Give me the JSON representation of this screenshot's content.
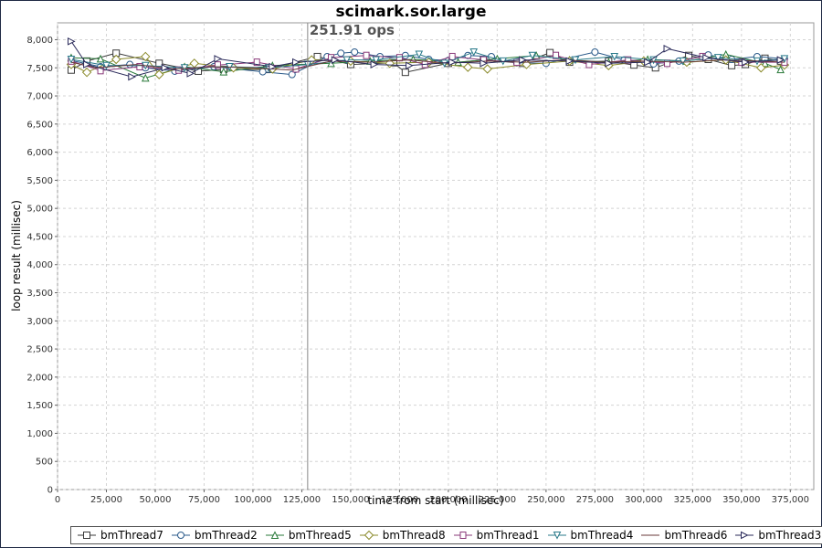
{
  "chart_data": {
    "type": "line",
    "title": "scimark.sor.large",
    "xlabel": "time from start (millisec)",
    "ylabel": "loop result (millisec)",
    "xlim": [
      0,
      387000
    ],
    "ylim": [
      0,
      8300
    ],
    "x_ticks": [
      "0",
      "25,000",
      "50,000",
      "75,000",
      "100,000",
      "125,000",
      "150,000",
      "175,000",
      "200,000",
      "225,000",
      "250,000",
      "275,000",
      "300,000",
      "325,000",
      "350,000",
      "375,000"
    ],
    "y_ticks": [
      "0",
      "500",
      "1,000",
      "1,500",
      "2,000",
      "2,500",
      "3,000",
      "3,500",
      "4,000",
      "4,500",
      "5,000",
      "5,500",
      "6,000",
      "6,500",
      "7,000",
      "7,500",
      "8,000"
    ],
    "grid": true,
    "legend_position": "bottom",
    "annotation": {
      "text": "251.91 ops",
      "x": 128000
    },
    "series": [
      {
        "name": "bmThread7",
        "marker": "square",
        "color": "#3a3a3a",
        "x": [
          7000,
          15000,
          30000,
          52000,
          72000,
          85000,
          107000,
          133000,
          150000,
          172000,
          178000,
          200000,
          218000,
          238000,
          252000,
          262000,
          282000,
          295000,
          306000,
          323000,
          333000,
          345000,
          352000,
          362000,
          370000
        ],
        "y": [
          7460,
          7620,
          7760,
          7580,
          7440,
          7470,
          7470,
          7700,
          7560,
          7590,
          7420,
          7580,
          7640,
          7580,
          7770,
          7600,
          7620,
          7550,
          7500,
          7720,
          7650,
          7540,
          7560,
          7670,
          7620
        ]
      },
      {
        "name": "bmThread2",
        "marker": "circle",
        "color": "#2a5a8a",
        "x": [
          7000,
          22000,
          37000,
          45000,
          60000,
          80000,
          105000,
          120000,
          138000,
          145000,
          152000,
          165000,
          178000,
          190000,
          200000,
          210000,
          222000,
          235000,
          250000,
          275000,
          290000,
          305000,
          318000,
          333000,
          345000,
          358000,
          372000
        ],
        "y": [
          7630,
          7520,
          7560,
          7500,
          7440,
          7520,
          7430,
          7380,
          7700,
          7760,
          7780,
          7700,
          7720,
          7650,
          7630,
          7720,
          7700,
          7590,
          7580,
          7780,
          7640,
          7570,
          7620,
          7730,
          7650,
          7700,
          7660
        ]
      },
      {
        "name": "bmThread5",
        "marker": "triangle-up",
        "color": "#2a7a3a",
        "x": [
          7000,
          22000,
          45000,
          65000,
          85000,
          110000,
          140000,
          160000,
          182000,
          205000,
          225000,
          245000,
          262000,
          282000,
          302000,
          322000,
          342000,
          362000,
          370000
        ],
        "y": [
          7680,
          7660,
          7320,
          7520,
          7430,
          7540,
          7580,
          7620,
          7650,
          7600,
          7660,
          7720,
          7640,
          7600,
          7650,
          7620,
          7740,
          7580,
          7470
        ]
      },
      {
        "name": "bmThread8",
        "marker": "diamond",
        "color": "#8a8a2a",
        "x": [
          7000,
          15000,
          30000,
          45000,
          52000,
          70000,
          90000,
          110000,
          130000,
          150000,
          170000,
          190000,
          210000,
          220000,
          240000,
          262000,
          282000,
          300000,
          322000,
          342000,
          360000,
          372000
        ],
        "y": [
          7560,
          7420,
          7650,
          7700,
          7380,
          7580,
          7500,
          7480,
          7640,
          7620,
          7580,
          7600,
          7510,
          7480,
          7560,
          7620,
          7540,
          7620,
          7600,
          7640,
          7500,
          7550
        ]
      },
      {
        "name": "bmThread1",
        "marker": "square-tall",
        "color": "#8a3a7a",
        "x": [
          7000,
          22000,
          42000,
          62000,
          82000,
          102000,
          122000,
          140000,
          158000,
          175000,
          188000,
          202000,
          218000,
          235000,
          255000,
          272000,
          292000,
          312000,
          330000,
          350000,
          372000
        ],
        "y": [
          7620,
          7450,
          7520,
          7460,
          7550,
          7600,
          7480,
          7680,
          7720,
          7680,
          7560,
          7700,
          7640,
          7600,
          7720,
          7560,
          7640,
          7580,
          7700,
          7600,
          7600
        ]
      },
      {
        "name": "bmThread4",
        "marker": "triangle-down",
        "color": "#2a7a8a",
        "x": [
          7000,
          25000,
          45000,
          65000,
          88000,
          108000,
          128000,
          148000,
          163000,
          185000,
          198000,
          213000,
          228000,
          243000,
          265000,
          285000,
          305000,
          320000,
          338000,
          358000,
          372000
        ],
        "y": [
          7650,
          7540,
          7540,
          7500,
          7520,
          7500,
          7560,
          7640,
          7640,
          7740,
          7580,
          7780,
          7620,
          7720,
          7640,
          7700,
          7640,
          7620,
          7680,
          7620,
          7660
        ]
      },
      {
        "name": "bmThread6",
        "marker": "none",
        "color": "#6a3a3a",
        "x": [
          7000,
          20000,
          40000,
          60000,
          80000,
          100000,
          120000,
          140000,
          160000,
          180000,
          200000,
          220000,
          240000,
          260000,
          280000,
          300000,
          320000,
          340000,
          360000,
          372000
        ],
        "y": [
          7600,
          7500,
          7560,
          7480,
          7520,
          7500,
          7460,
          7620,
          7600,
          7640,
          7580,
          7620,
          7600,
          7640,
          7600,
          7620,
          7600,
          7640,
          7620,
          7600
        ]
      },
      {
        "name": "bmThread3",
        "marker": "triangle-right",
        "color": "#2a2a5a",
        "x": [
          7000,
          15000,
          38000,
          55000,
          68000,
          82000,
          110000,
          122000,
          142000,
          162000,
          180000,
          202000,
          218000,
          238000,
          262000,
          282000,
          302000,
          312000,
          332000,
          352000,
          370000
        ],
        "y": [
          7970,
          7560,
          7340,
          7500,
          7400,
          7660,
          7520,
          7600,
          7640,
          7560,
          7540,
          7600,
          7580,
          7640,
          7620,
          7580,
          7600,
          7840,
          7680,
          7600,
          7640
        ]
      }
    ]
  }
}
